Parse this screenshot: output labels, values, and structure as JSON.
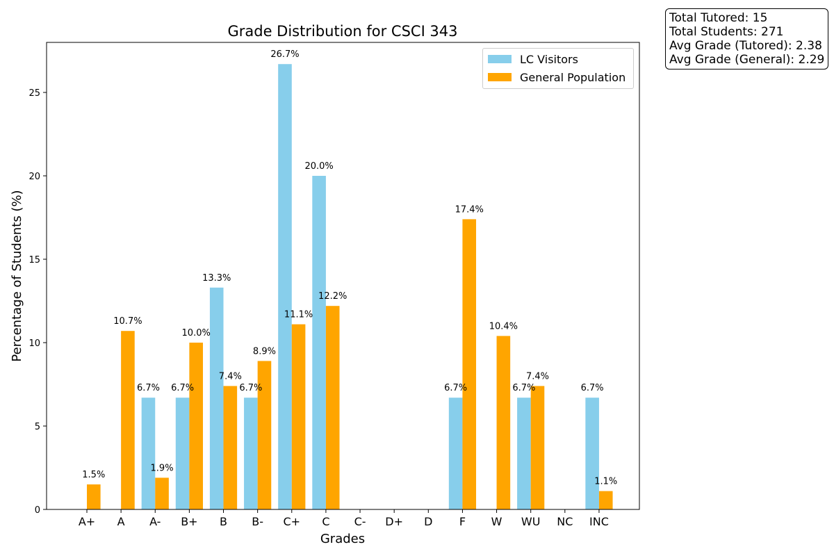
{
  "chart_data": {
    "type": "bar",
    "title": "Grade Distribution for CSCI 343",
    "xlabel": "Grades",
    "ylabel": "Percentage of Students (%)",
    "categories": [
      "A+",
      "A",
      "A-",
      "B+",
      "B",
      "B-",
      "C+",
      "C",
      "C-",
      "D+",
      "D",
      "F",
      "W",
      "WU",
      "NC",
      "INC"
    ],
    "ylim": [
      0,
      28
    ],
    "yticks": [
      0,
      5,
      10,
      15,
      20,
      25
    ],
    "grid": false,
    "legend_position": "top-right",
    "series": [
      {
        "name": "LC Visitors",
        "color": "#87ceeb",
        "values": [
          0,
          0,
          6.7,
          6.7,
          13.3,
          6.7,
          26.7,
          20.0,
          0,
          0,
          0,
          6.7,
          0,
          6.7,
          0,
          6.7
        ]
      },
      {
        "name": "General Population",
        "color": "#ffa500",
        "values": [
          1.5,
          10.7,
          1.9,
          10.0,
          7.4,
          8.9,
          11.1,
          12.2,
          0,
          0,
          0,
          17.4,
          10.4,
          7.4,
          0,
          1.1
        ]
      }
    ]
  },
  "stats": {
    "line1": "Total Tutored: 15",
    "line2": "Total Students: 271",
    "line3": "Avg Grade (Tutored): 2.38",
    "line4": "Avg Grade (General): 2.29"
  }
}
